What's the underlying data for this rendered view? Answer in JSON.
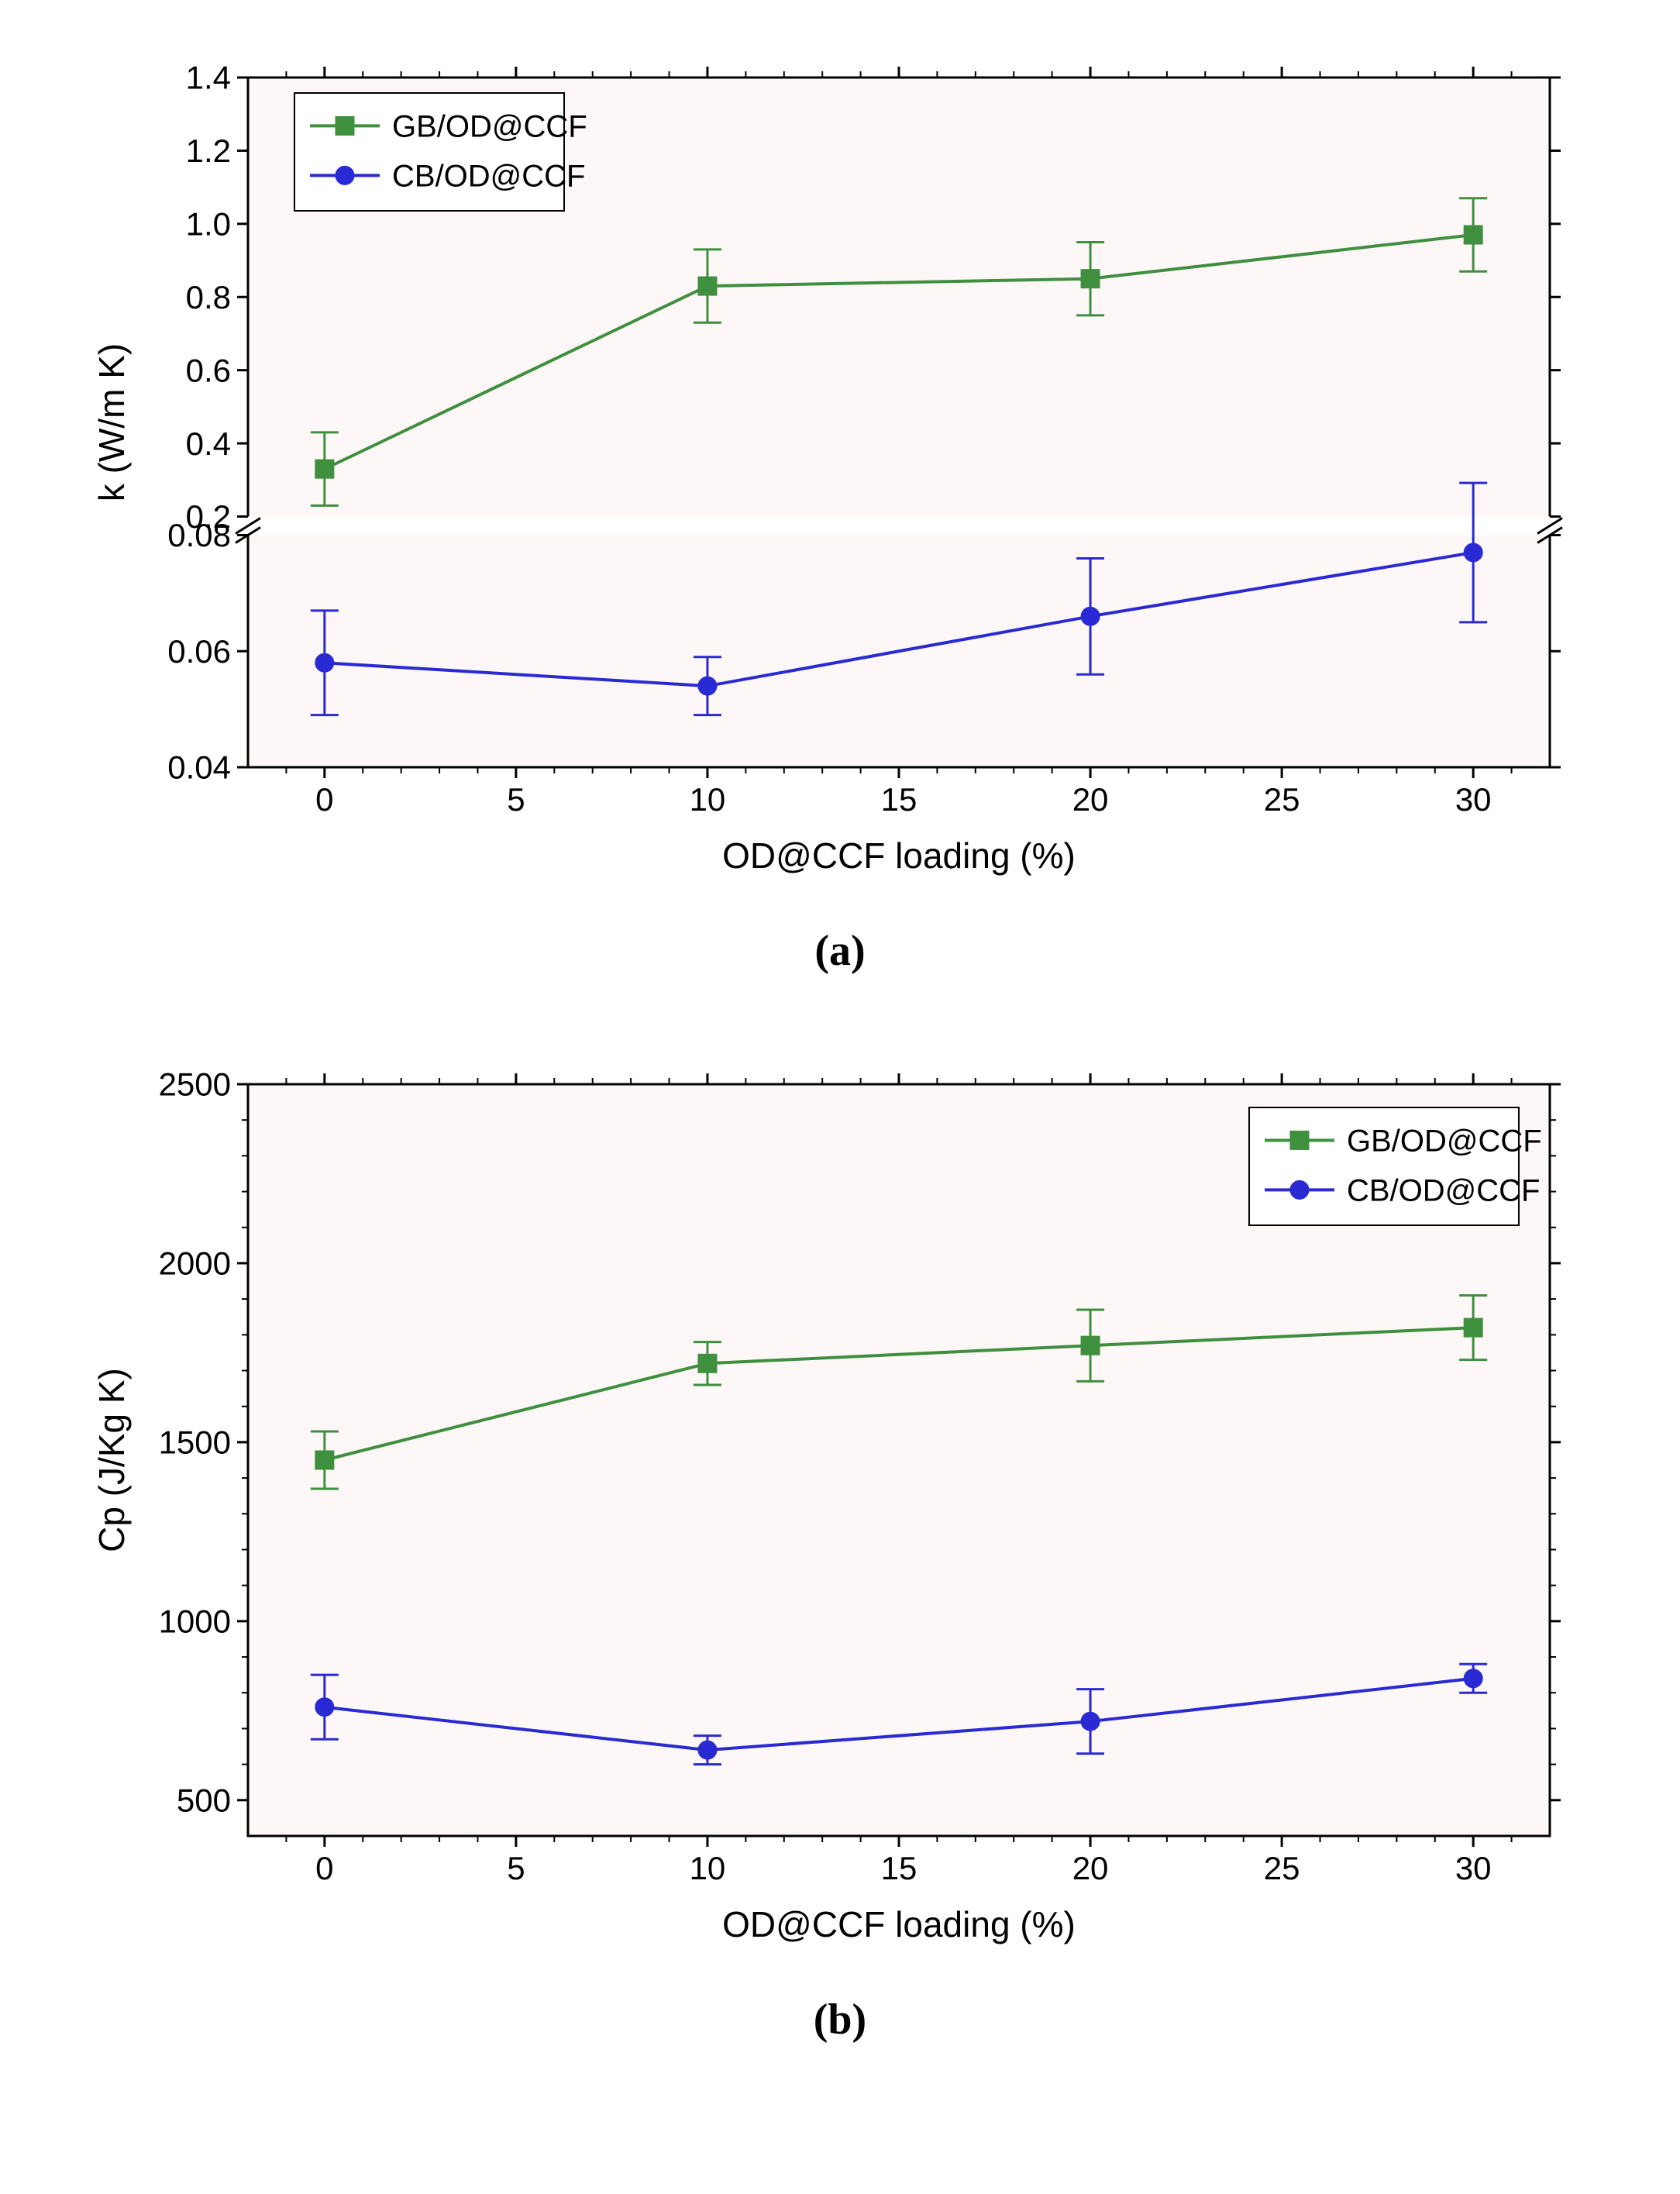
{
  "figure": {
    "background_color": "#ffffff",
    "panel_bg": "#fdf7f7",
    "axis_color": "#000000",
    "tick_font_size": 42,
    "label_font_size": 46,
    "caption_font_size": 56,
    "legend_font_size": 40,
    "series_colors": {
      "GB": "#3e8f3e",
      "CB": "#2a2ad4"
    },
    "marker_size": 12,
    "line_width": 4,
    "error_cap": 18,
    "panels": {
      "a": {
        "caption": "(a)",
        "xlabel": "OD@CCF loading (%)",
        "ylabel": "k (W/m K)",
        "xlim": [
          -2,
          32
        ],
        "xticks": [
          0,
          5,
          10,
          15,
          20,
          25,
          30
        ],
        "broken_axis": true,
        "upper": {
          "ylim": [
            0.2,
            1.4
          ],
          "yticks": [
            0.2,
            0.4,
            0.6,
            0.8,
            1.0,
            1.2,
            1.4
          ]
        },
        "lower": {
          "ylim": [
            0.04,
            0.08
          ],
          "yticks": [
            0.04,
            0.06,
            0.08
          ]
        },
        "legend_pos": "top-left",
        "series": [
          {
            "name": "GB/OD@CCF",
            "color_key": "GB",
            "marker": "square",
            "segment": "upper",
            "points": [
              {
                "x": 0,
                "y": 0.33,
                "err": 0.1
              },
              {
                "x": 10,
                "y": 0.83,
                "err": 0.1
              },
              {
                "x": 20,
                "y": 0.85,
                "err": 0.1
              },
              {
                "x": 30,
                "y": 0.97,
                "err": 0.1
              }
            ]
          },
          {
            "name": "CB/OD@CCF",
            "color_key": "CB",
            "marker": "circle",
            "segment": "lower",
            "points": [
              {
                "x": 0,
                "y": 0.058,
                "err": 0.009
              },
              {
                "x": 10,
                "y": 0.054,
                "err": 0.005
              },
              {
                "x": 20,
                "y": 0.066,
                "err": 0.01
              },
              {
                "x": 30,
                "y": 0.077,
                "err": 0.012
              }
            ]
          }
        ]
      },
      "b": {
        "caption": "(b)",
        "xlabel": "OD@CCF loading (%)",
        "ylabel": "Cp (J/Kg K)",
        "xlim": [
          -2,
          32
        ],
        "xticks": [
          0,
          5,
          10,
          15,
          20,
          25,
          30
        ],
        "ylim": [
          400,
          2500
        ],
        "yticks": [
          500,
          1000,
          1500,
          2000,
          2500
        ],
        "legend_pos": "top-right",
        "series": [
          {
            "name": "GB/OD@CCF",
            "color_key": "GB",
            "marker": "square",
            "points": [
              {
                "x": 0,
                "y": 1450,
                "err": 80
              },
              {
                "x": 10,
                "y": 1720,
                "err": 60
              },
              {
                "x": 20,
                "y": 1770,
                "err": 100
              },
              {
                "x": 30,
                "y": 1820,
                "err": 90
              }
            ]
          },
          {
            "name": "CB/OD@CCF",
            "color_key": "CB",
            "marker": "circle",
            "points": [
              {
                "x": 0,
                "y": 760,
                "err": 90
              },
              {
                "x": 10,
                "y": 640,
                "err": 40
              },
              {
                "x": 20,
                "y": 720,
                "err": 90
              },
              {
                "x": 30,
                "y": 840,
                "err": 40
              }
            ]
          }
        ]
      }
    }
  }
}
